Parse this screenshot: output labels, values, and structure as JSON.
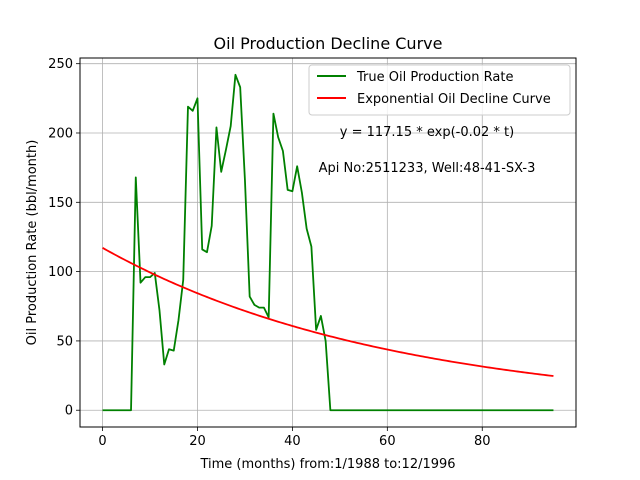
{
  "chart_data": {
    "type": "line",
    "title": "Oil Production Decline Curve",
    "xlabel": "Time (months) from:1/1988 to:12/1996",
    "ylabel": "Oil Production Rate (bbl/month)",
    "xlim": [
      -4.75,
      99.75
    ],
    "ylim": [
      -12.1,
      254.1
    ],
    "xticks": [
      0,
      20,
      40,
      60,
      80
    ],
    "yticks": [
      0,
      50,
      100,
      150,
      200,
      250
    ],
    "grid": true,
    "legend_position": "upper right",
    "annotations": [
      "y = 117.15 * exp(-0.02 * t)",
      "Api No:2511233, Well:48-41-SX-3"
    ],
    "series": [
      {
        "name": "True Oil Production Rate",
        "color": "#008000",
        "x": [
          0,
          1,
          2,
          3,
          4,
          5,
          6,
          7,
          8,
          9,
          10,
          11,
          12,
          13,
          14,
          15,
          16,
          17,
          18,
          19,
          20,
          21,
          22,
          23,
          24,
          25,
          26,
          27,
          28,
          29,
          30,
          31,
          32,
          33,
          34,
          35,
          36,
          37,
          38,
          39,
          40,
          41,
          42,
          43,
          44,
          45,
          46,
          47,
          48,
          49,
          50,
          51,
          52,
          53,
          54,
          55,
          56,
          57,
          58,
          59,
          60,
          61,
          62,
          63,
          64,
          65,
          66,
          67,
          68,
          69,
          70,
          71,
          72,
          73,
          74,
          75,
          76,
          77,
          78,
          79,
          80,
          81,
          82,
          83,
          84,
          85,
          86,
          87,
          88,
          89,
          90,
          91,
          92,
          93,
          94,
          95
        ],
        "y": [
          0,
          0,
          0,
          0,
          0,
          0,
          0,
          168,
          92,
          96,
          96,
          99,
          72,
          33,
          44,
          43,
          65,
          94,
          219,
          216,
          225,
          116,
          114,
          133,
          204,
          172,
          188,
          205,
          242,
          233,
          166,
          82,
          76,
          74,
          74,
          67,
          214,
          197,
          187,
          159,
          158,
          176,
          157,
          131,
          118,
          58,
          68,
          50,
          0,
          0,
          0,
          0,
          0,
          0,
          0,
          0,
          0,
          0,
          0,
          0,
          0,
          0,
          0,
          0,
          0,
          0,
          0,
          0,
          0,
          0,
          0,
          0,
          0,
          0,
          0,
          0,
          0,
          0,
          0,
          0,
          0,
          0,
          0,
          0,
          0,
          0,
          0,
          0,
          0,
          0,
          0,
          0,
          0,
          0,
          0,
          0
        ]
      },
      {
        "name": "Exponential Oil Decline Curve",
        "color": "#ff0000",
        "model": {
          "a": 117.15,
          "b": -0.0164
        },
        "x_range": [
          0,
          95
        ]
      }
    ]
  }
}
